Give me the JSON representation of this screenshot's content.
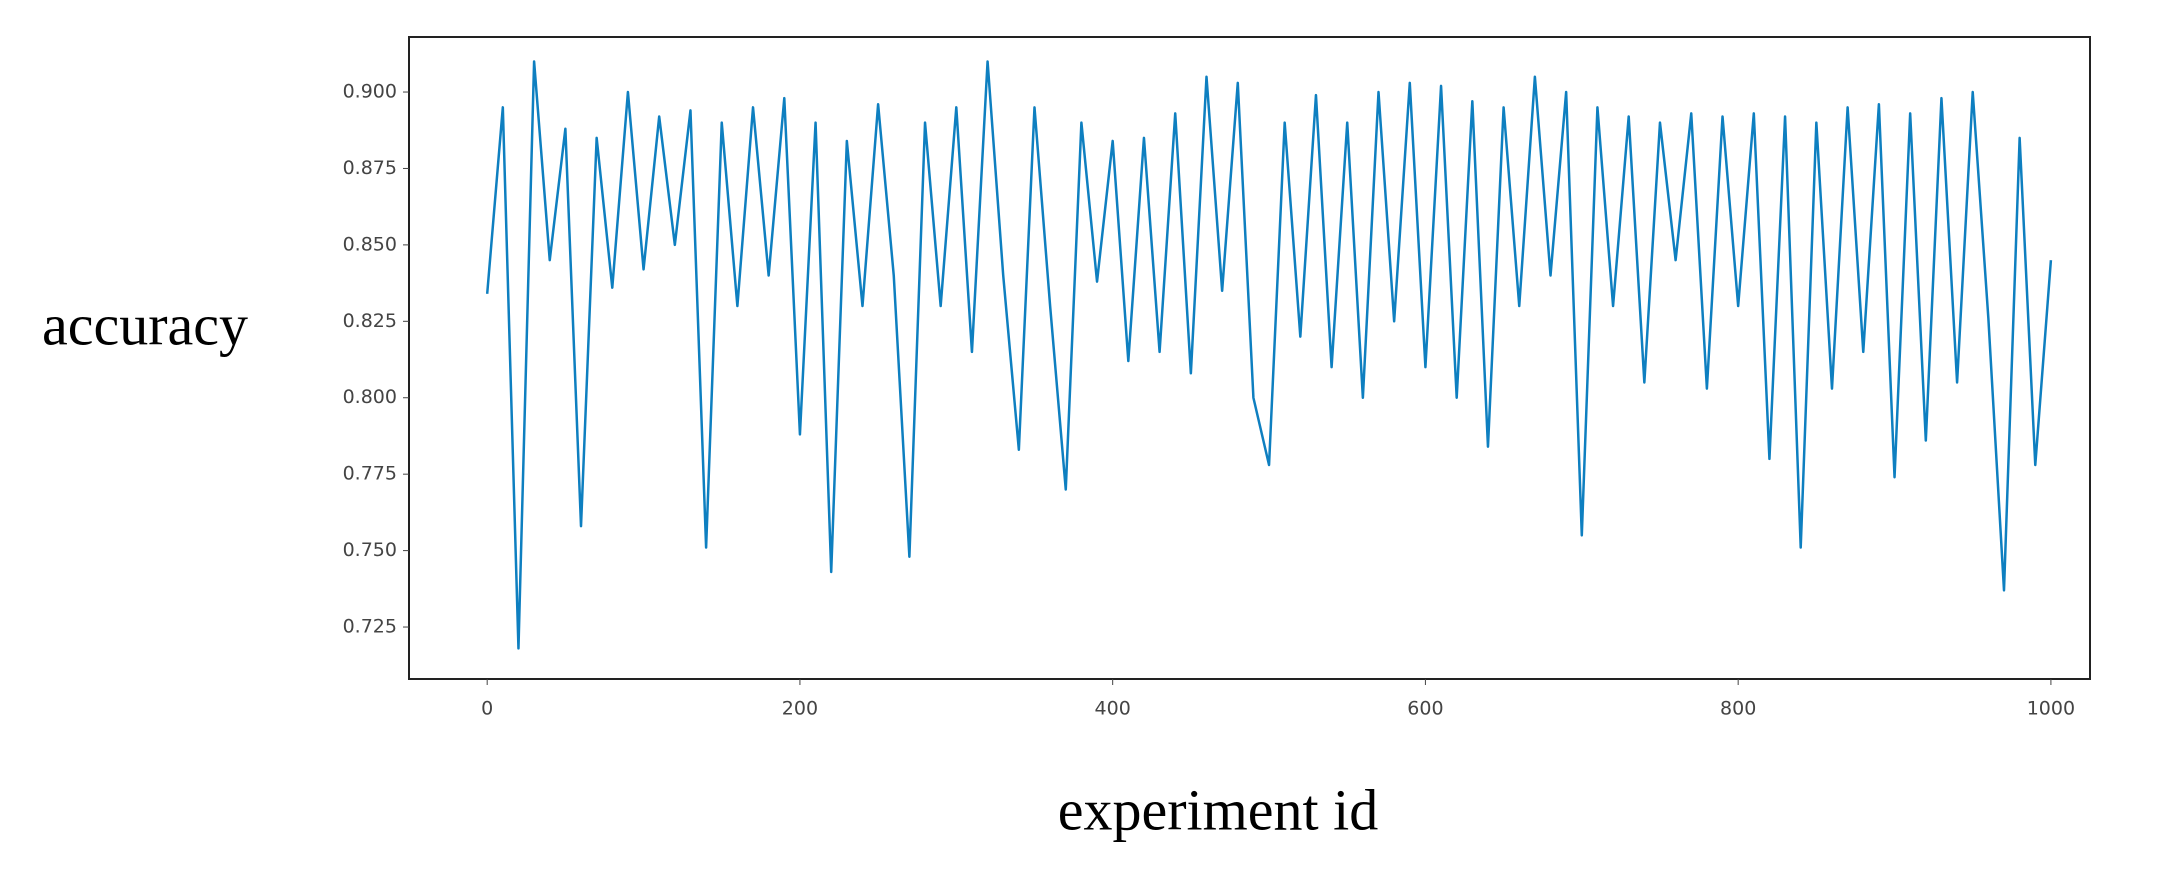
{
  "chart_data": {
    "type": "line",
    "xlabel": "experiment id",
    "ylabel": "accuracy",
    "xlim": [
      -50,
      1025
    ],
    "ylim": [
      0.708,
      0.918
    ],
    "xticks": [
      0,
      200,
      400,
      600,
      800,
      1000
    ],
    "yticks": [
      {
        "value": 0.725,
        "label": "0.725"
      },
      {
        "value": 0.75,
        "label": "0.750"
      },
      {
        "value": 0.775,
        "label": "0.775"
      },
      {
        "value": 0.8,
        "label": "0.800"
      },
      {
        "value": 0.825,
        "label": "0.825"
      },
      {
        "value": 0.85,
        "label": "0.850"
      },
      {
        "value": 0.875,
        "label": "0.875"
      },
      {
        "value": 0.9,
        "label": "0.900"
      }
    ],
    "x": [
      0,
      10,
      20,
      30,
      40,
      50,
      60,
      70,
      80,
      90,
      100,
      110,
      120,
      130,
      140,
      150,
      160,
      170,
      180,
      190,
      200,
      210,
      220,
      230,
      240,
      250,
      260,
      270,
      280,
      290,
      300,
      310,
      320,
      330,
      340,
      350,
      360,
      370,
      380,
      390,
      400,
      410,
      420,
      430,
      440,
      450,
      460,
      470,
      480,
      490,
      500,
      510,
      520,
      530,
      540,
      550,
      560,
      570,
      580,
      590,
      600,
      610,
      620,
      630,
      640,
      650,
      660,
      670,
      680,
      690,
      700,
      710,
      720,
      730,
      740,
      750,
      760,
      770,
      780,
      790,
      800,
      810,
      820,
      830,
      840,
      850,
      860,
      870,
      880,
      890,
      900,
      910,
      920,
      930,
      940,
      950,
      960,
      970,
      980,
      990,
      1000
    ],
    "series": [
      {
        "color": "#0e7fc0",
        "values": [
          0.834,
          0.895,
          0.718,
          0.91,
          0.845,
          0.888,
          0.758,
          0.885,
          0.836,
          0.9,
          0.842,
          0.892,
          0.85,
          0.894,
          0.751,
          0.89,
          0.83,
          0.895,
          0.84,
          0.898,
          0.788,
          0.89,
          0.743,
          0.884,
          0.83,
          0.896,
          0.84,
          0.748,
          0.89,
          0.83,
          0.895,
          0.815,
          0.91,
          0.84,
          0.783,
          0.895,
          0.83,
          0.77,
          0.89,
          0.838,
          0.884,
          0.812,
          0.885,
          0.815,
          0.893,
          0.808,
          0.905,
          0.835,
          0.903,
          0.8,
          0.778,
          0.89,
          0.82,
          0.899,
          0.81,
          0.89,
          0.8,
          0.9,
          0.825,
          0.903,
          0.81,
          0.902,
          0.8,
          0.897,
          0.784,
          0.895,
          0.83,
          0.905,
          0.84,
          0.9,
          0.755,
          0.895,
          0.83,
          0.892,
          0.805,
          0.89,
          0.845,
          0.893,
          0.803,
          0.892,
          0.83,
          0.893,
          0.78,
          0.892,
          0.751,
          0.89,
          0.803,
          0.895,
          0.815,
          0.896,
          0.774,
          0.893,
          0.786,
          0.898,
          0.805,
          0.9,
          0.826,
          0.737,
          0.885,
          0.778,
          0.845
        ]
      }
    ]
  }
}
